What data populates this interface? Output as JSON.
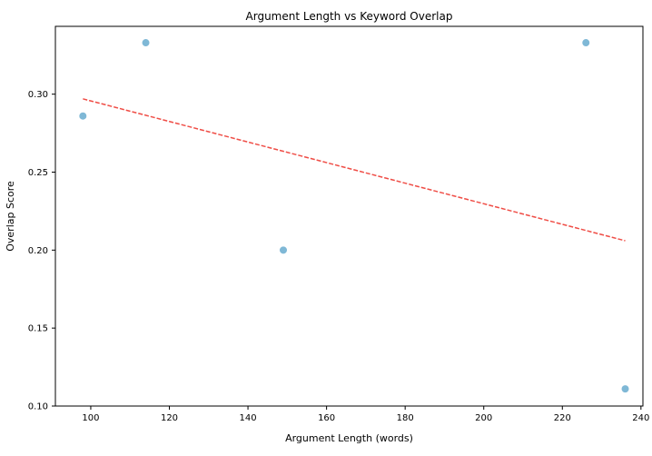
{
  "chart_data": {
    "type": "scatter",
    "title": "Argument Length vs Keyword Overlap",
    "xlabel": "Argument Length (words)",
    "ylabel": "Overlap Score",
    "xlim": [
      91,
      240.5
    ],
    "ylim": [
      0.1,
      0.3435
    ],
    "x_ticks": [
      100,
      120,
      140,
      160,
      180,
      200,
      220,
      240
    ],
    "x_tick_labels": [
      "100",
      "120",
      "140",
      "160",
      "180",
      "200",
      "220",
      "240"
    ],
    "y_ticks": [
      0.1,
      0.15,
      0.2,
      0.25,
      0.3
    ],
    "y_tick_labels": [
      "0.10",
      "0.15",
      "0.20",
      "0.25",
      "0.30"
    ],
    "grid": false,
    "legend": "none",
    "series": [
      {
        "points": [
          {
            "x": 98,
            "y": 0.286
          },
          {
            "x": 114,
            "y": 0.333
          },
          {
            "x": 149,
            "y": 0.2
          },
          {
            "x": 226,
            "y": 0.333
          },
          {
            "x": 236,
            "y": 0.111
          }
        ],
        "color": "#7fb8d6"
      }
    ],
    "trendline": {
      "x_start": 98,
      "x_end": 236,
      "y_start": 0.297,
      "y_end": 0.206,
      "color": "#ee3a32",
      "style": "dashed"
    }
  }
}
